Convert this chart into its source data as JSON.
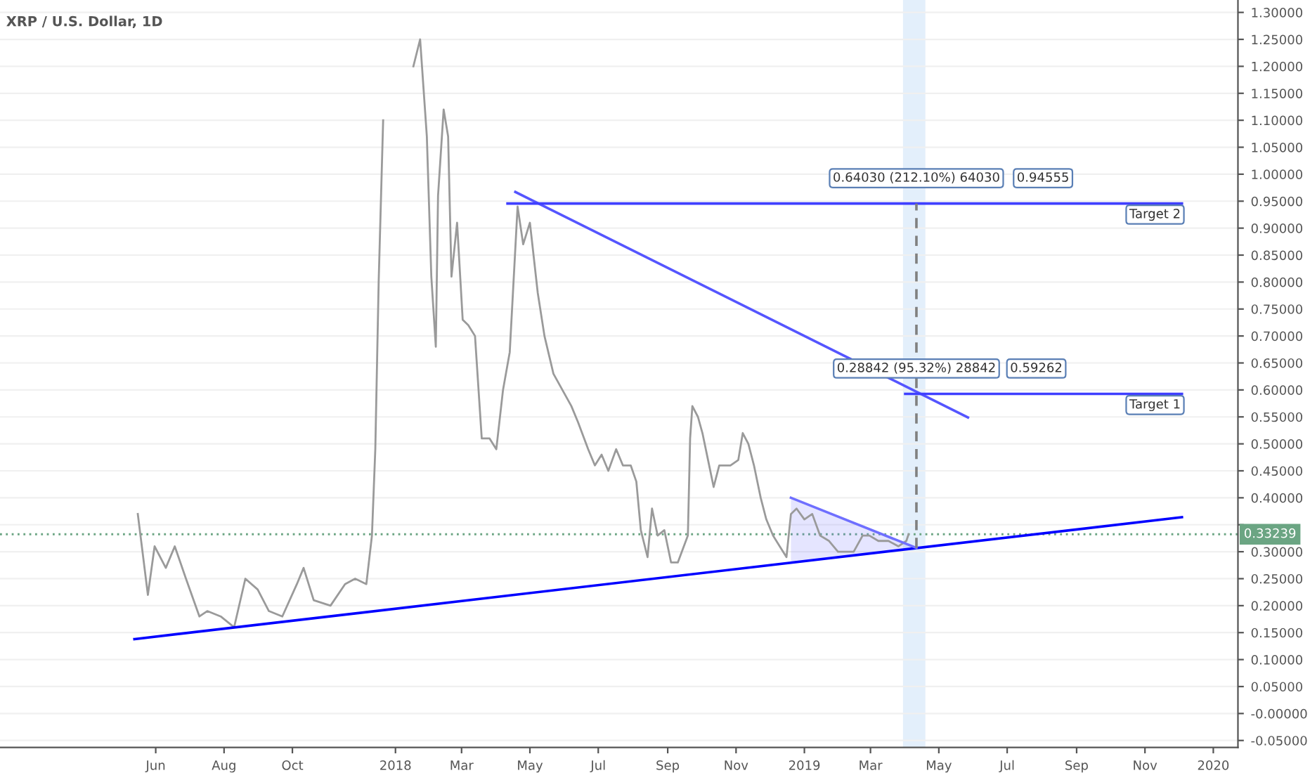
{
  "chart_data": {
    "type": "line",
    "title": "XRP / U.S. Dollar, 1D",
    "xlim": [
      "2017-01-13",
      "2020-01-23"
    ],
    "ylim": [
      -0.063,
      1.323
    ],
    "xticks": [
      {
        "value": "2017-06-01",
        "label": "Jun"
      },
      {
        "value": "2017-08-01",
        "label": "Aug"
      },
      {
        "value": "2017-10-01",
        "label": "Oct"
      },
      {
        "value": "2018-01-01",
        "label": "2018"
      },
      {
        "value": "2018-03-01",
        "label": "Mar"
      },
      {
        "value": "2018-05-01",
        "label": "May"
      },
      {
        "value": "2018-07-01",
        "label": "Jul"
      },
      {
        "value": "2018-09-01",
        "label": "Sep"
      },
      {
        "value": "2018-11-01",
        "label": "Nov"
      },
      {
        "value": "2019-01-01",
        "label": "2019"
      },
      {
        "value": "2019-03-01",
        "label": "Mar"
      },
      {
        "value": "2019-05-01",
        "label": "May"
      },
      {
        "value": "2019-07-01",
        "label": "Jul"
      },
      {
        "value": "2019-09-01",
        "label": "Sep"
      },
      {
        "value": "2019-11-01",
        "label": "Nov"
      },
      {
        "value": "2020-01-01",
        "label": "2020"
      }
    ],
    "yticks": [
      {
        "value": -0.05,
        "label": "-0.05000"
      },
      {
        "value": 0,
        "label": "-0.00000"
      },
      {
        "value": 0.05,
        "label": "0.05000"
      },
      {
        "value": 0.1,
        "label": "0.10000"
      },
      {
        "value": 0.15,
        "label": "0.15000"
      },
      {
        "value": 0.2,
        "label": "0.20000"
      },
      {
        "value": 0.25,
        "label": "0.25000"
      },
      {
        "value": 0.3,
        "label": "0.30000"
      },
      {
        "value": 0.35,
        "label": null
      },
      {
        "value": 0.4,
        "label": "0.40000"
      },
      {
        "value": 0.45,
        "label": "0.45000"
      },
      {
        "value": 0.5,
        "label": "0.50000"
      },
      {
        "value": 0.55,
        "label": "0.55000"
      },
      {
        "value": 0.6,
        "label": "0.60000"
      },
      {
        "value": 0.65,
        "label": "0.65000"
      },
      {
        "value": 0.7,
        "label": "0.70000"
      },
      {
        "value": 0.75,
        "label": "0.75000"
      },
      {
        "value": 0.8,
        "label": "0.80000"
      },
      {
        "value": 0.85,
        "label": "0.85000"
      },
      {
        "value": 0.9,
        "label": "0.90000"
      },
      {
        "value": 0.95,
        "label": "0.95000"
      },
      {
        "value": 1.0,
        "label": "1.00000"
      },
      {
        "value": 1.05,
        "label": "1.05000"
      },
      {
        "value": 1.1,
        "label": "1.10000"
      },
      {
        "value": 1.15,
        "label": "1.15000"
      },
      {
        "value": 1.2,
        "label": "1.20000"
      },
      {
        "value": 1.25,
        "label": "1.25000"
      },
      {
        "value": 1.3,
        "label": "1.30000"
      }
    ],
    "grid": "y",
    "series": [
      {
        "color": "#9a9a9a",
        "x": [
          "2017-05-16",
          "2017-05-25",
          "2017-05-31",
          "2017-06-10",
          "2017-06-18",
          "2017-06-28",
          "2017-07-10",
          "2017-07-17",
          "2017-07-29",
          "2017-08-10",
          "2017-08-20",
          "2017-08-31",
          "2017-09-10",
          "2017-09-22",
          "2017-10-05",
          "2017-10-11",
          "2017-10-20",
          "2017-11-04",
          "2017-11-17",
          "2017-11-26",
          "2017-12-06",
          "2017-12-11",
          "2017-12-14",
          "2017-12-17",
          "2017-12-21",
          "2017-12-30",
          "2018-01-07",
          "2018-01-17",
          "2018-01-23",
          "2018-01-29",
          "2018-02-02",
          "2018-02-06",
          "2018-02-08",
          "2018-02-13",
          "2018-02-17",
          "2018-02-20",
          "2018-02-25",
          "2018-03-02",
          "2018-03-07",
          "2018-03-13",
          "2018-03-19",
          "2018-03-26",
          "2018-04-01",
          "2018-04-07",
          "2018-04-13",
          "2018-04-20",
          "2018-04-25",
          "2018-05-01",
          "2018-05-08",
          "2018-05-14",
          "2018-05-22",
          "2018-05-30",
          "2018-06-07",
          "2018-06-13",
          "2018-06-22",
          "2018-06-28",
          "2018-07-04",
          "2018-07-10",
          "2018-07-17",
          "2018-07-23",
          "2018-07-30",
          "2018-08-04",
          "2018-08-08",
          "2018-08-14",
          "2018-08-18",
          "2018-08-23",
          "2018-08-29",
          "2018-09-04",
          "2018-09-10",
          "2018-09-19",
          "2018-09-21",
          "2018-09-23",
          "2018-09-28",
          "2018-10-02",
          "2018-10-07",
          "2018-10-12",
          "2018-10-17",
          "2018-10-27",
          "2018-11-03",
          "2018-11-07",
          "2018-11-12",
          "2018-11-17",
          "2018-11-23",
          "2018-11-28",
          "2018-12-04",
          "2018-12-10",
          "2018-12-16",
          "2018-12-20",
          "2018-12-25",
          "2019-01-01",
          "2019-01-08",
          "2019-01-15",
          "2019-01-23",
          "2019-01-31",
          "2019-02-07",
          "2019-02-14",
          "2019-02-22",
          "2019-02-28",
          "2019-03-08",
          "2019-03-17",
          "2019-03-26",
          "2019-04-02",
          "2019-04-04"
        ],
        "values": [
          0.37,
          0.22,
          0.31,
          0.27,
          0.31,
          0.25,
          0.18,
          0.19,
          0.18,
          0.16,
          0.25,
          0.23,
          0.19,
          0.18,
          0.24,
          0.27,
          0.21,
          0.2,
          0.24,
          0.25,
          0.24,
          0.33,
          0.49,
          0.8,
          1.1,
          null,
          null,
          1.2,
          1.25,
          1.07,
          0.81,
          0.68,
          0.96,
          1.12,
          1.07,
          0.81,
          0.91,
          0.73,
          0.72,
          0.7,
          0.51,
          0.51,
          0.49,
          0.6,
          0.67,
          0.94,
          0.87,
          0.91,
          0.78,
          0.7,
          0.63,
          0.6,
          0.57,
          0.54,
          0.49,
          0.46,
          0.48,
          0.45,
          0.49,
          0.46,
          0.46,
          0.43,
          0.34,
          0.29,
          0.38,
          0.33,
          0.34,
          0.28,
          0.28,
          0.33,
          0.51,
          0.57,
          0.55,
          0.52,
          0.47,
          0.42,
          0.46,
          0.46,
          0.47,
          0.52,
          0.5,
          0.46,
          0.4,
          0.36,
          0.33,
          0.31,
          0.29,
          0.37,
          0.38,
          0.36,
          0.37,
          0.33,
          0.32,
          0.3,
          0.3,
          0.3,
          0.33,
          0.33,
          0.32,
          0.32,
          0.31,
          0.32,
          0.33239
        ]
      },
      {
        "color": "#0000ff",
        "x": [
          "2017-05-13",
          "2019-12-04"
        ],
        "values": [
          0.138,
          0.364
        ]
      },
      {
        "color": "#5555ff",
        "x": [
          "2018-04-18",
          "2019-05-27"
        ],
        "values": [
          0.967,
          0.549
        ]
      },
      {
        "color": "#3f3fff",
        "x": [
          "2018-04-11",
          "2019-12-04"
        ],
        "values": [
          0.94555,
          0.94555
        ]
      },
      {
        "color": "#3f3fff",
        "x": [
          "2019-04-01",
          "2019-12-04"
        ],
        "values": [
          0.59262,
          0.59262
        ]
      },
      {
        "color": "#6f6fff",
        "x": [
          "2018-12-20",
          "2019-04-11"
        ],
        "values": [
          0.4,
          0.307
        ],
        "lower": [
          0.28,
          0.307
        ],
        "upper": [
          0.4,
          0.307
        ]
      },
      {
        "color": "#808080",
        "line_style": "dashed",
        "x": [
          "2019-04-11",
          "2019-04-11"
        ],
        "values": [
          0.307,
          0.94555
        ]
      }
    ],
    "ref_lines": [
      {
        "axis": "y",
        "value": 0.33239,
        "label": "0.33239",
        "color": "#6ba583",
        "line_style": "dotted"
      }
    ],
    "bands": [
      {
        "axis": "x",
        "from": "2019-03-30",
        "to": "2019-04-19",
        "color": "#e3effb"
      }
    ],
    "annotations": [
      {
        "text": "0.64030 (212.10%) 64030",
        "x": "2019-04-11",
        "y": 0.94555
      },
      {
        "text": "0.28842 (95.32%) 28842",
        "x": "2019-04-11",
        "y": 0.59262
      },
      {
        "text": "0.94555",
        "x": "2019-08-02",
        "y": 0.94555
      },
      {
        "text": "0.59262",
        "x": "2019-07-27",
        "y": 0.59262
      },
      {
        "text": "Target 2",
        "x": "2019-11-10",
        "y": 0.925
      },
      {
        "text": "Target 1",
        "x": "2019-11-10",
        "y": 0.572
      }
    ]
  }
}
